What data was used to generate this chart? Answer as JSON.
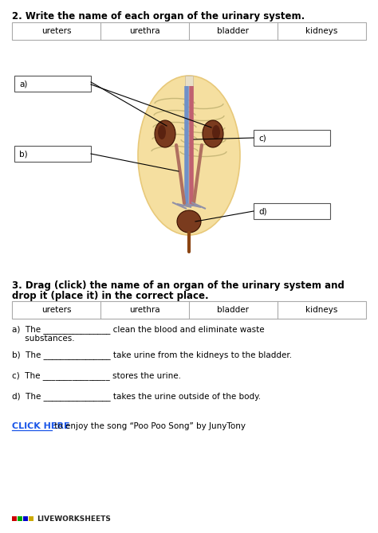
{
  "title2": "2. Write the name of each organ of the urinary system.",
  "title3_line1": "3. Drag (click) the name of an organ of the urinary system and",
  "title3_line2": "drop it (place it) in the correct place.",
  "word_bank": [
    "ureters",
    "urethra",
    "bladder",
    "kidneys"
  ],
  "click_here_text": "CLICK HERE",
  "click_here_rest": " to enjoy the song “Poo Poo Song” by JunyTony",
  "liveworksheets_text": "LIVEWORKSHEETS",
  "bg_color": "#ffffff",
  "body_fill": "#f5dfa0",
  "body_outline": "#e8c97a",
  "kidney_color": "#7a3b1e",
  "bladder_color": "#7a3b1e",
  "table_border": "#aaaaaa",
  "box_border": "#555555",
  "title_fontsize": 8.5,
  "text_fontsize": 7.5,
  "word_fontsize": 7.5,
  "label_fontsize": 7.5,
  "link_color": "#1a56e8",
  "lw_color_r": "#cc0000",
  "lw_color_g": "#00aa00",
  "lw_color_b": "#0000cc",
  "lw_color_y": "#ccaa00",
  "sentence_a_1": "a)  The ________________ clean the blood and eliminate waste",
  "sentence_a_2": "     substances.",
  "sentence_b": "b)  The ________________ take urine from the kidneys to the bladder.",
  "sentence_c": "c)  The ________________ stores the urine.",
  "sentence_d": "d)  The ________________ takes the urine outside of the body."
}
